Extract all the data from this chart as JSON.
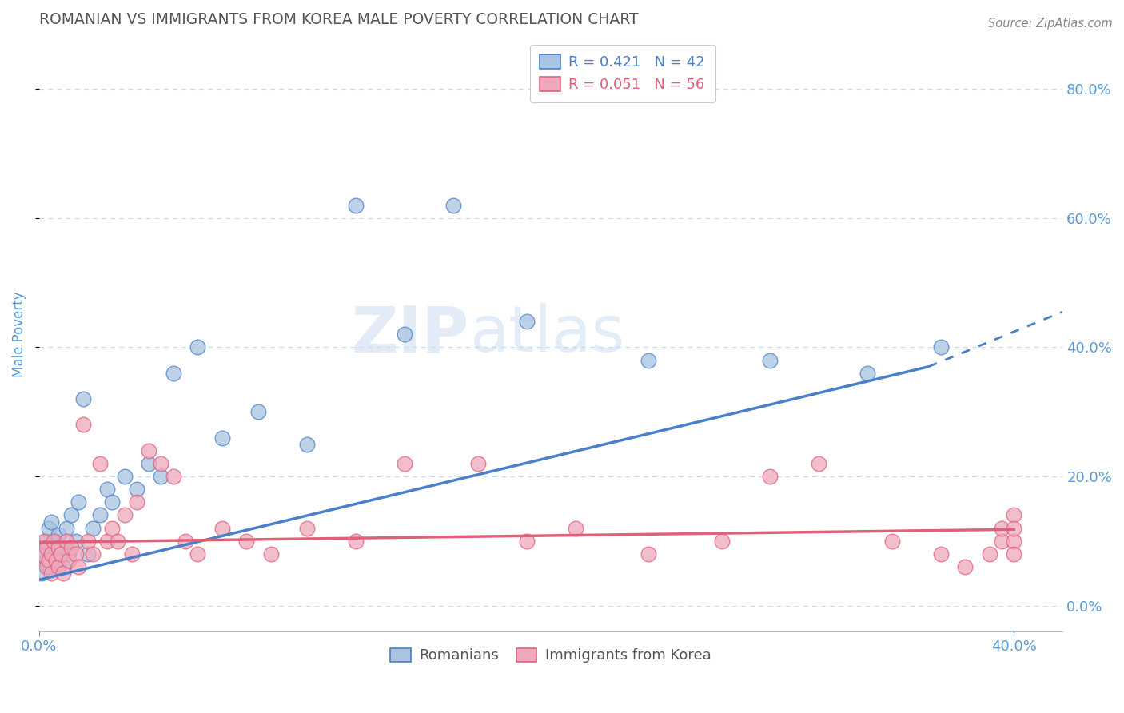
{
  "title": "ROMANIAN VS IMMIGRANTS FROM KOREA MALE POVERTY CORRELATION CHART",
  "source": "Source: ZipAtlas.com",
  "ylabel": "Male Poverty",
  "xlim": [
    0.0,
    0.42
  ],
  "ylim": [
    -0.04,
    0.88
  ],
  "ytick_vals": [
    0.0,
    0.2,
    0.4,
    0.6,
    0.8
  ],
  "right_yticklabels": [
    "0.0%",
    "20.0%",
    "40.0%",
    "60.0%",
    "80.0%"
  ],
  "legend_r1": "R = 0.421   N = 42",
  "legend_r2": "R = 0.051   N = 56",
  "romanians_color": "#a8c4e0",
  "koreans_color": "#f0a8bc",
  "line_romanian_color": "#4a7fcb",
  "line_korean_color": "#e0607a",
  "background_color": "#ffffff",
  "title_color": "#555555",
  "tick_color": "#5b9bd5",
  "grid_color": "#c8d8e8",
  "romanians_x": [
    0.001,
    0.002,
    0.003,
    0.003,
    0.004,
    0.004,
    0.005,
    0.005,
    0.006,
    0.007,
    0.007,
    0.008,
    0.009,
    0.01,
    0.011,
    0.012,
    0.013,
    0.015,
    0.016,
    0.018,
    0.02,
    0.022,
    0.025,
    0.028,
    0.03,
    0.035,
    0.04,
    0.045,
    0.05,
    0.055,
    0.065,
    0.075,
    0.09,
    0.11,
    0.13,
    0.15,
    0.17,
    0.2,
    0.25,
    0.3,
    0.34,
    0.37
  ],
  "romanians_y": [
    0.05,
    0.08,
    0.07,
    0.1,
    0.06,
    0.12,
    0.09,
    0.13,
    0.08,
    0.1,
    0.07,
    0.11,
    0.09,
    0.06,
    0.12,
    0.08,
    0.14,
    0.1,
    0.16,
    0.32,
    0.08,
    0.12,
    0.14,
    0.18,
    0.16,
    0.2,
    0.18,
    0.22,
    0.2,
    0.36,
    0.4,
    0.26,
    0.3,
    0.25,
    0.62,
    0.42,
    0.62,
    0.44,
    0.38,
    0.38,
    0.36,
    0.4
  ],
  "koreans_x": [
    0.001,
    0.002,
    0.003,
    0.003,
    0.004,
    0.005,
    0.005,
    0.006,
    0.007,
    0.008,
    0.008,
    0.009,
    0.01,
    0.011,
    0.012,
    0.013,
    0.015,
    0.016,
    0.018,
    0.02,
    0.022,
    0.025,
    0.028,
    0.03,
    0.032,
    0.035,
    0.038,
    0.04,
    0.045,
    0.05,
    0.055,
    0.06,
    0.065,
    0.075,
    0.085,
    0.095,
    0.11,
    0.13,
    0.15,
    0.18,
    0.2,
    0.22,
    0.25,
    0.28,
    0.3,
    0.32,
    0.35,
    0.37,
    0.38,
    0.39,
    0.395,
    0.395,
    0.4,
    0.4,
    0.4,
    0.4
  ],
  "koreans_y": [
    0.08,
    0.1,
    0.06,
    0.09,
    0.07,
    0.05,
    0.08,
    0.1,
    0.07,
    0.09,
    0.06,
    0.08,
    0.05,
    0.1,
    0.07,
    0.09,
    0.08,
    0.06,
    0.28,
    0.1,
    0.08,
    0.22,
    0.1,
    0.12,
    0.1,
    0.14,
    0.08,
    0.16,
    0.24,
    0.22,
    0.2,
    0.1,
    0.08,
    0.12,
    0.1,
    0.08,
    0.12,
    0.1,
    0.22,
    0.22,
    0.1,
    0.12,
    0.08,
    0.1,
    0.2,
    0.22,
    0.1,
    0.08,
    0.06,
    0.08,
    0.1,
    0.12,
    0.14,
    0.1,
    0.08,
    0.12
  ],
  "line_rom_x0": 0.0,
  "line_rom_y0": 0.04,
  "line_rom_x1": 0.365,
  "line_rom_y1": 0.37,
  "line_rom_dash_x1": 0.42,
  "line_rom_dash_y1": 0.455,
  "line_kor_x0": 0.0,
  "line_kor_y0": 0.098,
  "line_kor_x1": 0.4,
  "line_kor_y1": 0.118
}
